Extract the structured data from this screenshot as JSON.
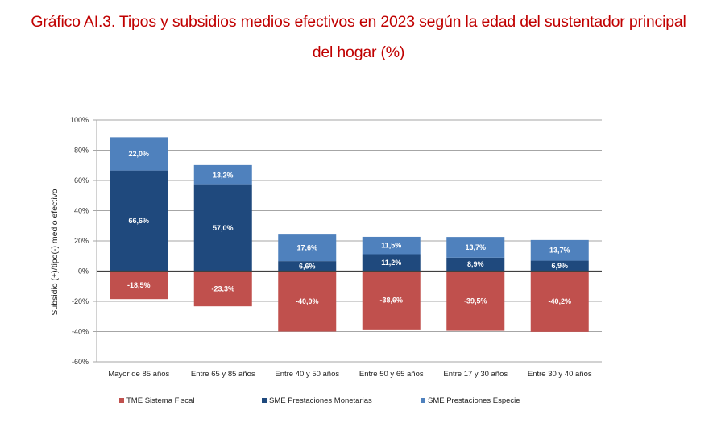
{
  "title_lines": [
    "Gráfico AI.3. Tipos y subsidios medios efectivos en 2023 según la edad del sustentador principal",
    "del hogar (%)"
  ],
  "chart_data": {
    "type": "bar",
    "stacked": true,
    "title": "Gráfico AI.3. Tipos y subsidios medios efectivos en 2023 según la edad del sustentador principal del hogar (%)",
    "xlabel": "",
    "ylabel": "Subsidio (+)/tipo(-) medio efectivo",
    "ylim": [
      -60,
      100
    ],
    "yticks": [
      100,
      80,
      60,
      40,
      20,
      0,
      -20,
      -40,
      -60
    ],
    "ytick_labels": [
      "100%",
      "80%",
      "60%",
      "40%",
      "20%",
      "0%",
      "-20%",
      "-40%",
      "-60%"
    ],
    "grid": true,
    "legend_position": "bottom",
    "categories": [
      "Mayor de 85 años",
      "Entre 65 y 85 años",
      "Entre 40 y 50 años",
      "Entre 50 y 65 años",
      "Entre 17 y 30 años",
      "Entre 30 y 40 años"
    ],
    "series": [
      {
        "name": "TME Sistema Fiscal",
        "color": "#c0504d",
        "values": [
          -18.5,
          -23.3,
          -40.0,
          -38.6,
          -39.5,
          -40.2
        ],
        "labels": [
          "-18,5%",
          "-23,3%",
          "-40,0%",
          "-38,6%",
          "-39,5%",
          "-40,2%"
        ]
      },
      {
        "name": "SME Prestaciones Monetarias",
        "color": "#1f497d",
        "values": [
          66.6,
          57.0,
          6.6,
          11.2,
          8.9,
          6.9
        ],
        "labels": [
          "66,6%",
          "57,0%",
          "6,6%",
          "11,2%",
          "8,9%",
          "6,9%"
        ]
      },
      {
        "name": "SME Prestaciones Especie",
        "color": "#4f81bd",
        "values": [
          22.0,
          13.2,
          17.6,
          11.5,
          13.7,
          13.7
        ],
        "labels": [
          "22,0%",
          "13,2%",
          "17,6%",
          "11,5%",
          "13,7%",
          "13,7%"
        ]
      }
    ]
  }
}
